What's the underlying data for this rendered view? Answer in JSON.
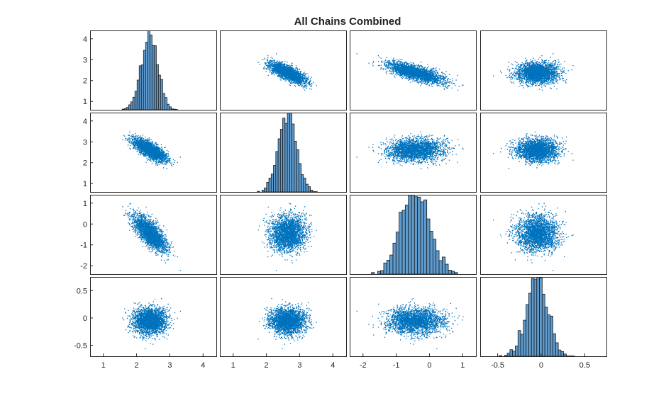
{
  "title": "All Chains Combined",
  "colors": {
    "marker": "#0072BD",
    "bar_fill": "#5E9BCF",
    "bar_edge": "#1a1a1a",
    "axis": "#262626",
    "background": "#ffffff"
  },
  "chart_data": {
    "type": "scatter_matrix",
    "title": "All Chains Combined",
    "xlabel": "",
    "ylabel": "",
    "grid": false,
    "n_vars": 4,
    "variables": [
      {
        "index": 1,
        "mean": 2.4,
        "sd": 0.25,
        "range": [
          0.6,
          4.4
        ],
        "ticks": [
          1,
          2,
          3,
          4
        ]
      },
      {
        "index": 2,
        "mean": 2.63,
        "sd": 0.27,
        "range": [
          0.6,
          4.4
        ],
        "ticks": [
          1,
          2,
          3,
          4
        ]
      },
      {
        "index": 3,
        "mean": -0.45,
        "sd": 0.36,
        "range": [
          -2.4,
          1.4
        ],
        "ticks": [
          -2,
          -1,
          0,
          1
        ]
      },
      {
        "index": 4,
        "mean": -0.05,
        "sd": 0.12,
        "range": [
          -0.7,
          0.75
        ],
        "ticks": [
          -0.5,
          0,
          0.5
        ]
      }
    ],
    "correlations": [
      [
        1.0,
        -0.75,
        -0.85,
        0.0
      ],
      [
        -0.75,
        1.0,
        0.1,
        0.0
      ],
      [
        -0.85,
        0.1,
        1.0,
        0.0
      ],
      [
        0.0,
        0.0,
        0.0,
        1.0
      ]
    ],
    "n_samples": 2500,
    "hist_bins": 28,
    "diagonal": "histogram",
    "off_diagonal": "scatter"
  }
}
